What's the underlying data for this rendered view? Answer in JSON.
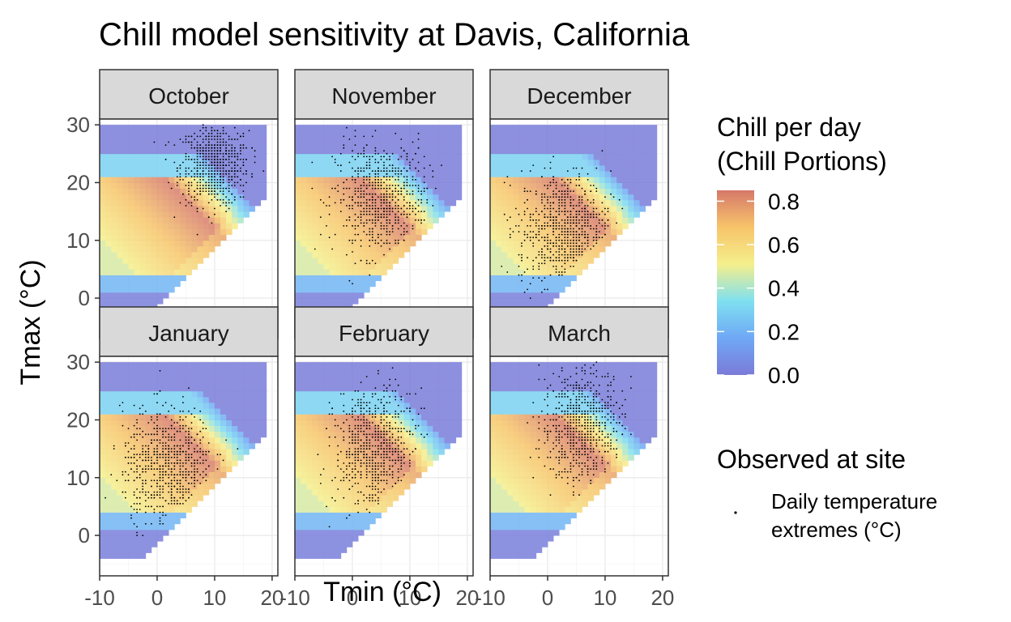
{
  "chart_data": {
    "type": "heatmap",
    "title": "Chill model sensitivity at Davis, California",
    "xlabel": "Tmin (°C)",
    "ylabel": "Tmax (°C)",
    "xlim": [
      -10,
      21
    ],
    "ylim": [
      -7,
      31
    ],
    "x_ticks": [
      -10,
      0,
      10,
      20
    ],
    "x_tick_labels": [
      "-10",
      "0",
      "10",
      "20"
    ],
    "y_ticks": [
      0,
      10,
      20,
      30
    ],
    "y_tick_labels": [
      "0",
      "10",
      "20",
      "30"
    ],
    "grid": true,
    "facets": [
      "October",
      "November",
      "December",
      "January",
      "February",
      "March"
    ],
    "facet_layout": {
      "rows": 2,
      "cols": 3
    },
    "heatmap_domain": {
      "tmin_range": [
        -10,
        19
      ],
      "tmax_range": [
        -4,
        29.5
      ],
      "constraint": "Tmax >= Tmin"
    },
    "fill_legend": {
      "title_line1": "Chill per day",
      "title_line2": "(Chill Portions)",
      "min": 0.0,
      "max": 0.85,
      "ticks": [
        0.0,
        0.2,
        0.4,
        0.6,
        0.8
      ],
      "tick_labels": [
        "0.0",
        "0.2",
        "0.4",
        "0.6",
        "0.8"
      ],
      "colors": [
        "#7b7bd8",
        "#6fa8f5",
        "#7fe0f0",
        "#f5ef8c",
        "#f7c46a",
        "#d6786a"
      ]
    },
    "points_legend": {
      "title": "Observed at site",
      "label_line1": "Daily temperature",
      "label_line2": "extremes (°C)"
    },
    "observed_clusters": [
      {
        "month": "October",
        "tmin_center": 10,
        "tmin_sd": 3.0,
        "tmax_center": 23,
        "tmax_sd": 3.5
      },
      {
        "month": "November",
        "tmin_center": 5,
        "tmin_sd": 4.0,
        "tmax_center": 17,
        "tmax_sd": 5.0
      },
      {
        "month": "December",
        "tmin_center": 3,
        "tmin_sd": 4.0,
        "tmax_center": 12,
        "tmax_sd": 5.0
      },
      {
        "month": "January",
        "tmin_center": 2,
        "tmin_sd": 4.0,
        "tmax_center": 12,
        "tmax_sd": 5.0
      },
      {
        "month": "February",
        "tmin_center": 4,
        "tmin_sd": 3.5,
        "tmax_center": 15,
        "tmax_sd": 5.0
      },
      {
        "month": "March",
        "tmin_center": 6,
        "tmin_sd": 3.5,
        "tmax_center": 19,
        "tmax_sd": 5.0
      }
    ]
  }
}
